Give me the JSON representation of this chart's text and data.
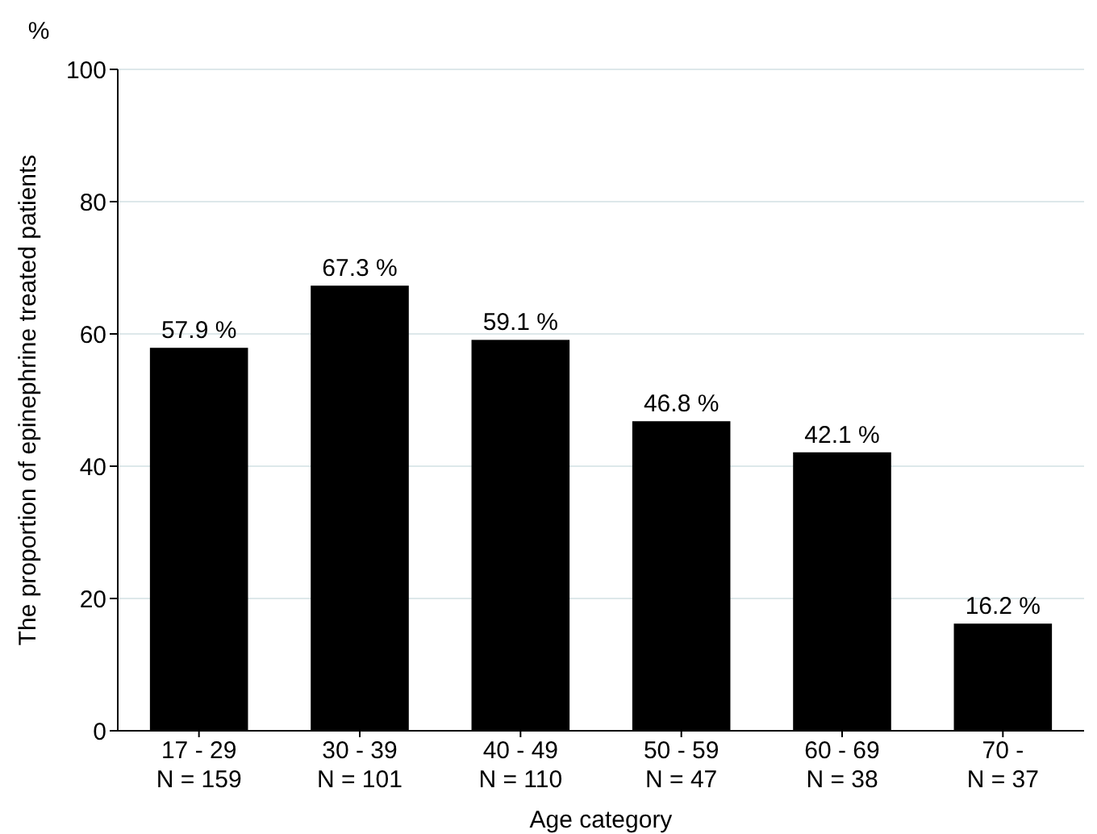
{
  "chart_data": {
    "type": "bar",
    "xlabel": "Age category",
    "ylabel": "The proportion of epinephrine treated patients",
    "annotations": [
      "%"
    ],
    "categories": [
      "17 - 29\nN = 159",
      "30 - 39\nN = 101",
      "40 - 49\nN = 110",
      "50 - 59\nN = 47",
      "60 - 69\nN = 38",
      "70 -\nN = 37"
    ],
    "values": [
      57.9,
      67.3,
      59.1,
      46.8,
      42.1,
      16.2
    ],
    "value_labels": [
      "57.9 %",
      "67.3 %",
      "59.1 %",
      "46.8 %",
      "42.1 %",
      "16.2 %"
    ],
    "color": "#000000",
    "ylim": [
      0,
      100
    ],
    "yticks": [
      0,
      20,
      40,
      60,
      80,
      100
    ],
    "grid": "y"
  }
}
